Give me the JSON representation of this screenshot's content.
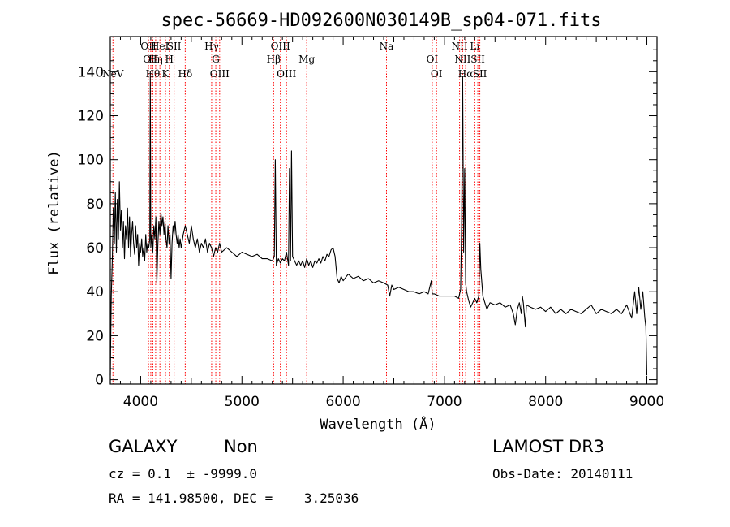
{
  "chart_data": {
    "type": "line",
    "title": "spec-56669-HD092600N030149B_sp04-071.fits",
    "xlabel": "Wavelength (Å)",
    "ylabel": "Flux (relative)",
    "xlim": [
      3700,
      9100
    ],
    "ylim": [
      -2,
      156
    ],
    "x_ticks": [
      4000,
      5000,
      6000,
      7000,
      8000,
      9000
    ],
    "y_ticks": [
      0,
      20,
      40,
      60,
      80,
      100,
      120,
      140
    ],
    "grid": false,
    "series": [
      {
        "color": "#000000",
        "points": [
          [
            3700,
            2
          ],
          [
            3710,
            38
          ],
          [
            3720,
            55
          ],
          [
            3730,
            78
          ],
          [
            3740,
            62
          ],
          [
            3750,
            85
          ],
          [
            3760,
            58
          ],
          [
            3770,
            82
          ],
          [
            3780,
            64
          ],
          [
            3790,
            90
          ],
          [
            3800,
            68
          ],
          [
            3810,
            77
          ],
          [
            3820,
            60
          ],
          [
            3830,
            72
          ],
          [
            3840,
            55
          ],
          [
            3850,
            70
          ],
          [
            3860,
            64
          ],
          [
            3870,
            78
          ],
          [
            3880,
            60
          ],
          [
            3890,
            74
          ],
          [
            3900,
            56
          ],
          [
            3910,
            66
          ],
          [
            3920,
            72
          ],
          [
            3930,
            62
          ],
          [
            3940,
            57
          ],
          [
            3950,
            70
          ],
          [
            3960,
            60
          ],
          [
            3970,
            66
          ],
          [
            3980,
            52
          ],
          [
            3990,
            62
          ],
          [
            4000,
            58
          ],
          [
            4010,
            64
          ],
          [
            4020,
            56
          ],
          [
            4030,
            60
          ],
          [
            4040,
            54
          ],
          [
            4050,
            66
          ],
          [
            4060,
            58
          ],
          [
            4070,
            62
          ],
          [
            4080,
            60
          ],
          [
            4090,
            64
          ],
          [
            4095,
            140
          ],
          [
            4100,
            60
          ],
          [
            4110,
            66
          ],
          [
            4120,
            58
          ],
          [
            4130,
            70
          ],
          [
            4140,
            64
          ],
          [
            4150,
            74
          ],
          [
            4160,
            44
          ],
          [
            4170,
            62
          ],
          [
            4180,
            72
          ],
          [
            4190,
            66
          ],
          [
            4200,
            76
          ],
          [
            4210,
            70
          ],
          [
            4220,
            74
          ],
          [
            4230,
            66
          ],
          [
            4240,
            72
          ],
          [
            4250,
            64
          ],
          [
            4260,
            60
          ],
          [
            4270,
            70
          ],
          [
            4280,
            62
          ],
          [
            4290,
            66
          ],
          [
            4300,
            46
          ],
          [
            4310,
            62
          ],
          [
            4320,
            70
          ],
          [
            4330,
            66
          ],
          [
            4340,
            72
          ],
          [
            4350,
            66
          ],
          [
            4360,
            62
          ],
          [
            4370,
            66
          ],
          [
            4380,
            60
          ],
          [
            4390,
            64
          ],
          [
            4400,
            60
          ],
          [
            4420,
            66
          ],
          [
            4440,
            70
          ],
          [
            4460,
            66
          ],
          [
            4480,
            62
          ],
          [
            4500,
            70
          ],
          [
            4520,
            64
          ],
          [
            4540,
            60
          ],
          [
            4560,
            64
          ],
          [
            4580,
            58
          ],
          [
            4600,
            62
          ],
          [
            4620,
            60
          ],
          [
            4640,
            64
          ],
          [
            4660,
            58
          ],
          [
            4680,
            62
          ],
          [
            4700,
            60
          ],
          [
            4720,
            56
          ],
          [
            4740,
            60
          ],
          [
            4760,
            58
          ],
          [
            4780,
            62
          ],
          [
            4800,
            58
          ],
          [
            4850,
            60
          ],
          [
            4900,
            58
          ],
          [
            4950,
            56
          ],
          [
            5000,
            58
          ],
          [
            5050,
            57
          ],
          [
            5100,
            56
          ],
          [
            5150,
            57
          ],
          [
            5200,
            55
          ],
          [
            5250,
            55
          ],
          [
            5300,
            54
          ],
          [
            5320,
            56
          ],
          [
            5330,
            100
          ],
          [
            5340,
            52
          ],
          [
            5360,
            55
          ],
          [
            5380,
            53
          ],
          [
            5400,
            55
          ],
          [
            5420,
            54
          ],
          [
            5440,
            58
          ],
          [
            5460,
            52
          ],
          [
            5470,
            96
          ],
          [
            5480,
            54
          ],
          [
            5490,
            104
          ],
          [
            5500,
            56
          ],
          [
            5520,
            54
          ],
          [
            5540,
            52
          ],
          [
            5560,
            54
          ],
          [
            5580,
            52
          ],
          [
            5600,
            54
          ],
          [
            5620,
            51
          ],
          [
            5640,
            55
          ],
          [
            5660,
            52
          ],
          [
            5680,
            54
          ],
          [
            5700,
            51
          ],
          [
            5720,
            54
          ],
          [
            5740,
            53
          ],
          [
            5760,
            55
          ],
          [
            5780,
            53
          ],
          [
            5800,
            56
          ],
          [
            5820,
            54
          ],
          [
            5840,
            57
          ],
          [
            5860,
            56
          ],
          [
            5880,
            59
          ],
          [
            5900,
            60
          ],
          [
            5920,
            56
          ],
          [
            5940,
            46
          ],
          [
            5960,
            44
          ],
          [
            5980,
            47
          ],
          [
            6000,
            45
          ],
          [
            6050,
            48
          ],
          [
            6100,
            46
          ],
          [
            6150,
            47
          ],
          [
            6200,
            45
          ],
          [
            6250,
            46
          ],
          [
            6300,
            44
          ],
          [
            6350,
            45
          ],
          [
            6400,
            44
          ],
          [
            6440,
            43
          ],
          [
            6460,
            38
          ],
          [
            6480,
            43
          ],
          [
            6500,
            41
          ],
          [
            6550,
            42
          ],
          [
            6600,
            41
          ],
          [
            6650,
            40
          ],
          [
            6700,
            40
          ],
          [
            6750,
            39
          ],
          [
            6800,
            40
          ],
          [
            6840,
            39
          ],
          [
            6870,
            45
          ],
          [
            6880,
            39
          ],
          [
            6900,
            39
          ],
          [
            6950,
            38
          ],
          [
            7000,
            38
          ],
          [
            7050,
            38
          ],
          [
            7100,
            38
          ],
          [
            7140,
            37
          ],
          [
            7160,
            41
          ],
          [
            7170,
            70
          ],
          [
            7180,
            138
          ],
          [
            7190,
            58
          ],
          [
            7200,
            96
          ],
          [
            7210,
            44
          ],
          [
            7220,
            40
          ],
          [
            7240,
            36
          ],
          [
            7260,
            33
          ],
          [
            7280,
            35
          ],
          [
            7300,
            37
          ],
          [
            7320,
            35
          ],
          [
            7340,
            38
          ],
          [
            7350,
            62
          ],
          [
            7360,
            50
          ],
          [
            7370,
            44
          ],
          [
            7380,
            38
          ],
          [
            7400,
            35
          ],
          [
            7420,
            32
          ],
          [
            7450,
            35
          ],
          [
            7500,
            34
          ],
          [
            7550,
            35
          ],
          [
            7600,
            33
          ],
          [
            7650,
            34
          ],
          [
            7680,
            30
          ],
          [
            7700,
            25
          ],
          [
            7720,
            32
          ],
          [
            7740,
            35
          ],
          [
            7760,
            30
          ],
          [
            7770,
            38
          ],
          [
            7780,
            35
          ],
          [
            7800,
            24
          ],
          [
            7810,
            34
          ],
          [
            7850,
            33
          ],
          [
            7900,
            32
          ],
          [
            7950,
            33
          ],
          [
            8000,
            31
          ],
          [
            8050,
            33
          ],
          [
            8100,
            30
          ],
          [
            8150,
            32
          ],
          [
            8200,
            30
          ],
          [
            8250,
            32
          ],
          [
            8300,
            31
          ],
          [
            8350,
            30
          ],
          [
            8400,
            32
          ],
          [
            8450,
            34
          ],
          [
            8500,
            30
          ],
          [
            8550,
            32
          ],
          [
            8600,
            31
          ],
          [
            8650,
            30
          ],
          [
            8700,
            32
          ],
          [
            8750,
            30
          ],
          [
            8800,
            34
          ],
          [
            8850,
            28
          ],
          [
            8880,
            40
          ],
          [
            8900,
            30
          ],
          [
            8920,
            42
          ],
          [
            8940,
            32
          ],
          [
            8960,
            40
          ],
          [
            8980,
            28
          ],
          [
            8990,
            24
          ],
          [
            9000,
            2
          ]
        ]
      }
    ],
    "emission_lines": [
      {
        "label": "NeV",
        "x": 3726,
        "row": 3
      },
      {
        "label": "OII",
        "x": 4077,
        "row": 0
      },
      {
        "label": "OII",
        "x": 4100,
        "row": 1
      },
      {
        "label": "Hθ",
        "x": 4120,
        "row": 3
      },
      {
        "label": "Hη",
        "x": 4148,
        "row": 1
      },
      {
        "label": "HeI",
        "x": 4190,
        "row": 0
      },
      {
        "label": "K",
        "x": 4245,
        "row": 3
      },
      {
        "label": "H",
        "x": 4283,
        "row": 2
      },
      {
        "label": "SII",
        "x": 4330,
        "row": 0
      },
      {
        "label": "Hδ",
        "x": 4440,
        "row": 3
      },
      {
        "label": "Hγ",
        "x": 4701,
        "row": 0
      },
      {
        "label": "G",
        "x": 4742,
        "row": 1
      },
      {
        "label": "OIII",
        "x": 4780,
        "row": 3
      },
      {
        "label": "Hβ",
        "x": 5313,
        "row": 2
      },
      {
        "label": "OIII",
        "x": 5380,
        "row": 0
      },
      {
        "label": "OIII",
        "x": 5440,
        "row": 3
      },
      {
        "label": "Mg",
        "x": 5640,
        "row": 2
      },
      {
        "label": "Na",
        "x": 6428,
        "row": 0
      },
      {
        "label": "OI",
        "x": 6880,
        "row": 1
      },
      {
        "label": "OI",
        "x": 6922,
        "row": 3
      },
      {
        "label": "NII",
        "x": 7150,
        "row": 0
      },
      {
        "label": "NII",
        "x": 7180,
        "row": 2
      },
      {
        "label": "Hα",
        "x": 7210,
        "row": 3
      },
      {
        "label": "Li",
        "x": 7300,
        "row": 0
      },
      {
        "label": "SII",
        "x": 7330,
        "row": 2
      },
      {
        "label": "SII",
        "x": 7350,
        "row": 3
      }
    ],
    "emission_line_color": "#ff0000"
  },
  "info": {
    "class": "GALAXY",
    "subclass": "Non",
    "survey": "LAMOST DR3",
    "redshift": "cz = 0.1  ± -9999.0",
    "obs_date": "Obs-Date: 20140111",
    "coords": "RA = 141.98500, DEC =    3.25036"
  }
}
